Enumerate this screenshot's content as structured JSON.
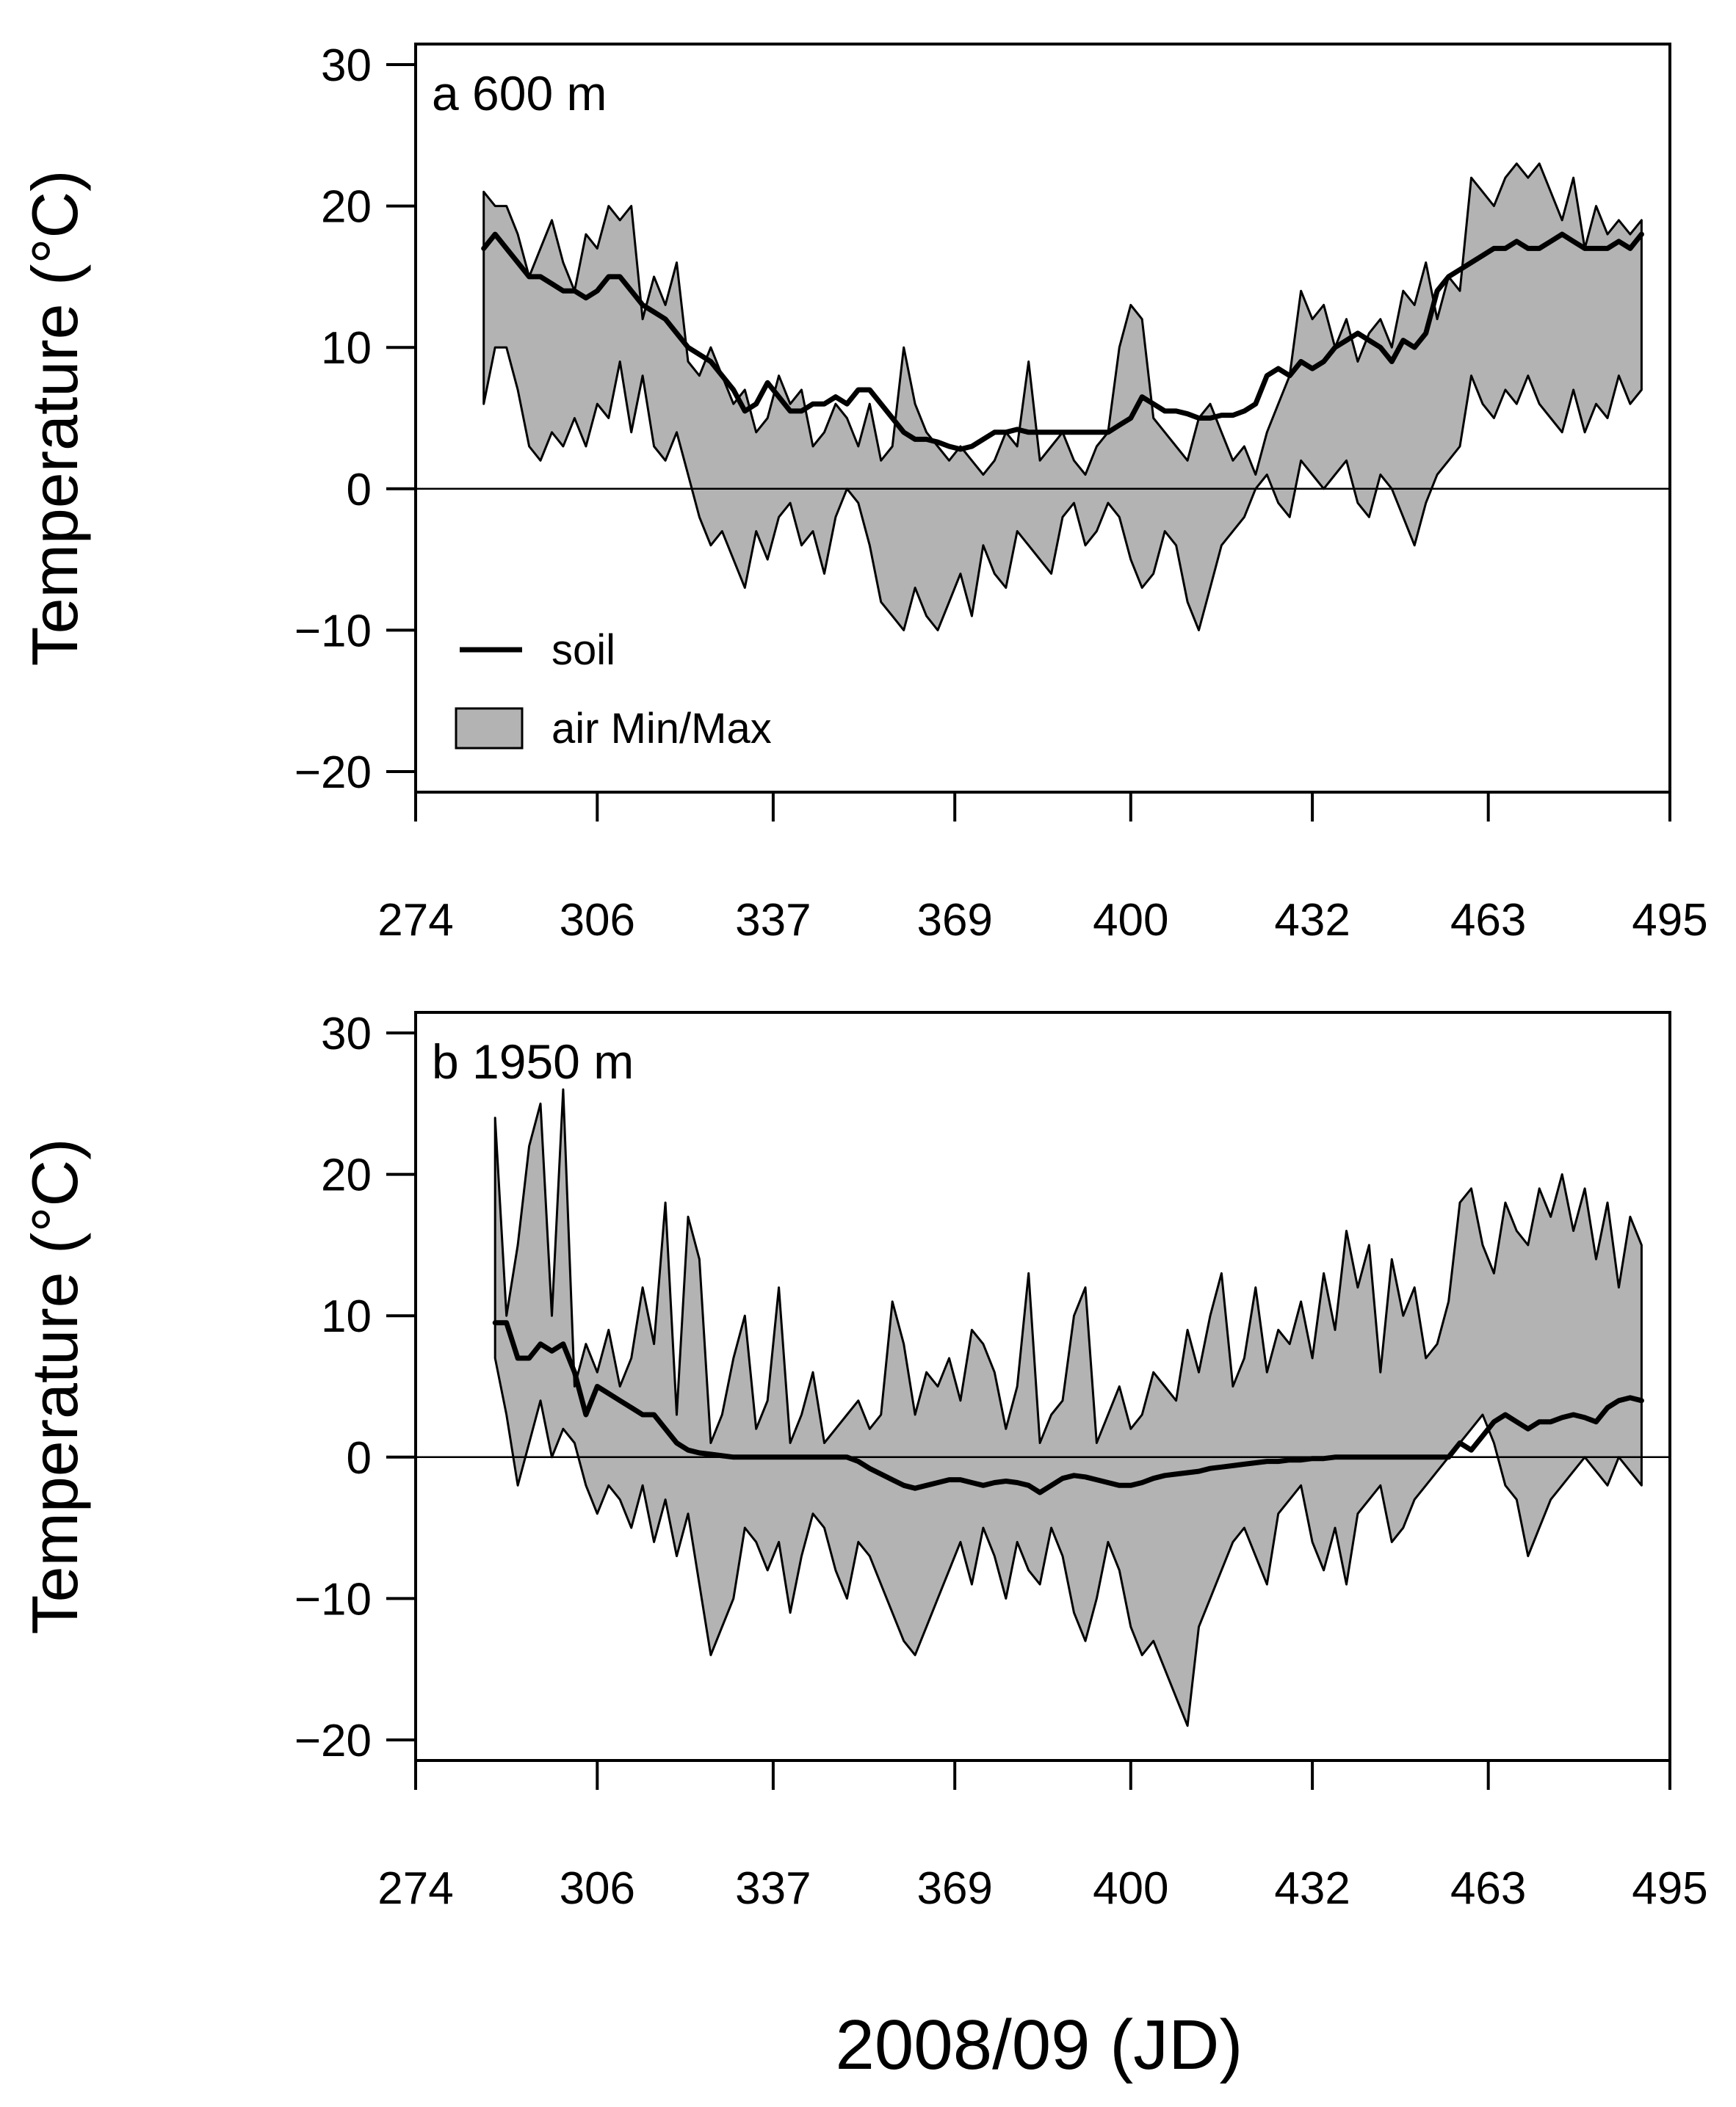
{
  "chart_data": [
    {
      "type": "area",
      "panel_title": "a 600 m",
      "ylabel": "Temperature (°C)",
      "xlim": [
        274,
        495
      ],
      "ylim": [
        -20,
        30
      ],
      "xticks": [
        274,
        306,
        337,
        369,
        400,
        432,
        463,
        495
      ],
      "yticks": [
        30,
        20,
        10,
        0,
        -10,
        -20
      ],
      "ytick_labels": [
        "30",
        "20",
        "10",
        "0",
        "−10",
        "−20"
      ],
      "zero_line": true,
      "legend": {
        "placement": "lower-left",
        "soil_label": "soil",
        "air_label": "air Min/Max"
      },
      "air_x": [
        286,
        288,
        290,
        292,
        294,
        296,
        298,
        300,
        302,
        304,
        306,
        308,
        310,
        312,
        314,
        316,
        318,
        320,
        322,
        324,
        326,
        328,
        330,
        332,
        334,
        336,
        338,
        340,
        342,
        344,
        346,
        348,
        350,
        352,
        354,
        356,
        358,
        360,
        362,
        364,
        366,
        368,
        370,
        372,
        374,
        376,
        378,
        380,
        382,
        384,
        386,
        388,
        390,
        392,
        394,
        396,
        398,
        400,
        402,
        404,
        406,
        408,
        410,
        412,
        414,
        416,
        418,
        420,
        422,
        424,
        426,
        428,
        430,
        432,
        434,
        436,
        438,
        440,
        442,
        444,
        446,
        448,
        450,
        452,
        454,
        456,
        458,
        460,
        462,
        464,
        466,
        468,
        470,
        472,
        474,
        476,
        478,
        480,
        482,
        484,
        486,
        488,
        490
      ],
      "air_max": [
        21,
        20,
        20,
        18,
        15,
        17,
        19,
        16,
        14,
        18,
        17,
        20,
        19,
        20,
        12,
        15,
        13,
        16,
        9,
        8,
        10,
        8,
        6,
        7,
        4,
        5,
        8,
        6,
        7,
        3,
        4,
        6,
        5,
        3,
        6,
        2,
        3,
        10,
        6,
        4,
        3,
        2,
        3,
        2,
        1,
        2,
        4,
        3,
        9,
        2,
        3,
        4,
        2,
        1,
        3,
        4,
        10,
        13,
        12,
        5,
        4,
        3,
        2,
        5,
        6,
        4,
        2,
        3,
        1,
        4,
        6,
        8,
        14,
        12,
        13,
        10,
        12,
        9,
        11,
        12,
        10,
        14,
        13,
        16,
        12,
        15,
        14,
        22,
        21,
        20,
        22,
        23,
        22,
        23,
        21,
        19,
        22,
        17,
        20,
        18,
        19,
        18,
        19
      ],
      "air_min": [
        6,
        10,
        10,
        7,
        3,
        2,
        4,
        3,
        5,
        3,
        6,
        5,
        9,
        4,
        8,
        3,
        2,
        4,
        1,
        -2,
        -4,
        -3,
        -5,
        -7,
        -3,
        -5,
        -2,
        -1,
        -4,
        -3,
        -6,
        -2,
        0,
        -1,
        -4,
        -8,
        -9,
        -10,
        -7,
        -9,
        -10,
        -8,
        -6,
        -9,
        -4,
        -6,
        -7,
        -3,
        -4,
        -5,
        -6,
        -2,
        -1,
        -4,
        -3,
        -1,
        -2,
        -5,
        -7,
        -6,
        -3,
        -4,
        -8,
        -10,
        -7,
        -4,
        -3,
        -2,
        0,
        1,
        -1,
        -2,
        2,
        1,
        0,
        1,
        2,
        -1,
        -2,
        1,
        0,
        -2,
        -4,
        -1,
        1,
        2,
        3,
        8,
        6,
        5,
        7,
        6,
        8,
        6,
        5,
        4,
        7,
        4,
        6,
        5,
        8,
        6,
        7
      ],
      "soil_x": [
        286,
        288,
        290,
        292,
        294,
        296,
        298,
        300,
        302,
        304,
        306,
        308,
        310,
        312,
        314,
        316,
        318,
        320,
        322,
        324,
        326,
        328,
        330,
        332,
        334,
        336,
        338,
        340,
        342,
        344,
        346,
        348,
        350,
        352,
        354,
        356,
        358,
        360,
        362,
        364,
        366,
        368,
        370,
        372,
        374,
        376,
        378,
        380,
        382,
        384,
        386,
        388,
        390,
        392,
        394,
        396,
        398,
        400,
        402,
        404,
        406,
        408,
        410,
        412,
        414,
        416,
        418,
        420,
        422,
        424,
        426,
        428,
        430,
        432,
        434,
        436,
        438,
        440,
        442,
        444,
        446,
        448,
        450,
        452,
        454,
        456,
        458,
        460,
        462,
        464,
        466,
        468,
        470,
        472,
        474,
        476,
        478,
        480,
        482,
        484,
        486,
        488,
        490
      ],
      "soil": [
        17,
        18,
        17,
        16,
        15,
        15,
        14.5,
        14,
        14,
        13.5,
        14,
        15,
        15,
        14,
        13,
        12.5,
        12,
        11,
        10,
        9.5,
        9,
        8,
        7,
        5.5,
        6,
        7.5,
        6.5,
        5.5,
        5.5,
        6,
        6,
        6.5,
        6,
        7,
        7,
        6,
        5,
        4,
        3.5,
        3.5,
        3.3,
        3,
        2.8,
        3,
        3.5,
        4,
        4,
        4.2,
        4,
        4,
        4,
        4,
        4,
        4,
        4,
        4,
        4.5,
        5,
        6.5,
        6,
        5.5,
        5.5,
        5.3,
        5,
        5,
        5.2,
        5.2,
        5.5,
        6,
        8,
        8.5,
        8,
        9,
        8.5,
        9,
        10,
        10.5,
        11,
        10.5,
        10,
        9,
        10.5,
        10,
        11,
        14,
        15,
        15.5,
        16,
        16.5,
        17,
        17,
        17.5,
        17,
        17,
        17.5,
        18,
        17.5,
        17,
        17,
        17,
        17.5,
        17,
        18
      ]
    },
    {
      "type": "area",
      "panel_title": "b 1950 m",
      "ylabel": "Temperature (°C)",
      "xlim": [
        274,
        495
      ],
      "ylim": [
        -20,
        30
      ],
      "xticks": [
        274,
        306,
        337,
        369,
        400,
        432,
        463,
        495
      ],
      "yticks": [
        30,
        20,
        10,
        0,
        -10,
        -20
      ],
      "ytick_labels": [
        "30",
        "20",
        "10",
        "0",
        "−10",
        "−20"
      ],
      "zero_line": true,
      "air_x": [
        288,
        290,
        292,
        294,
        296,
        298,
        300,
        302,
        304,
        306,
        308,
        310,
        312,
        314,
        316,
        318,
        320,
        322,
        324,
        326,
        328,
        330,
        332,
        334,
        336,
        338,
        340,
        342,
        344,
        346,
        348,
        350,
        352,
        354,
        356,
        358,
        360,
        362,
        364,
        366,
        368,
        370,
        372,
        374,
        376,
        378,
        380,
        382,
        384,
        386,
        388,
        390,
        392,
        394,
        396,
        398,
        400,
        402,
        404,
        406,
        408,
        410,
        412,
        414,
        416,
        418,
        420,
        422,
        424,
        426,
        428,
        430,
        432,
        434,
        436,
        438,
        440,
        442,
        444,
        446,
        448,
        450,
        452,
        454,
        456,
        458,
        460,
        462,
        464,
        466,
        468,
        470,
        472,
        474,
        476,
        478,
        480,
        482,
        484,
        486,
        488,
        490
      ],
      "air_max": [
        24,
        10,
        15,
        22,
        25,
        10,
        26,
        5,
        8,
        6,
        9,
        5,
        7,
        12,
        8,
        18,
        3,
        17,
        14,
        1,
        3,
        7,
        10,
        2,
        4,
        12,
        1,
        3,
        6,
        1,
        2,
        3,
        4,
        2,
        3,
        11,
        8,
        3,
        6,
        5,
        7,
        4,
        9,
        8,
        6,
        2,
        5,
        13,
        1,
        3,
        4,
        10,
        12,
        1,
        3,
        5,
        2,
        3,
        6,
        5,
        4,
        9,
        6,
        10,
        13,
        5,
        7,
        12,
        6,
        9,
        8,
        11,
        7,
        13,
        9,
        16,
        12,
        15,
        6,
        14,
        10,
        12,
        7,
        8,
        11,
        18,
        19,
        15,
        13,
        18,
        16,
        15,
        19,
        17,
        20,
        16,
        19,
        14,
        18,
        12,
        17,
        15
      ],
      "air_min": [
        7,
        3,
        -2,
        1,
        4,
        0,
        2,
        1,
        -2,
        -4,
        -2,
        -3,
        -5,
        -2,
        -6,
        -3,
        -7,
        -4,
        -9,
        -14,
        -12,
        -10,
        -5,
        -6,
        -8,
        -6,
        -11,
        -7,
        -4,
        -5,
        -8,
        -10,
        -6,
        -7,
        -9,
        -11,
        -13,
        -14,
        -12,
        -10,
        -8,
        -6,
        -9,
        -5,
        -7,
        -10,
        -6,
        -8,
        -9,
        -5,
        -7,
        -11,
        -13,
        -10,
        -6,
        -8,
        -12,
        -14,
        -13,
        -15,
        -17,
        -19,
        -12,
        -10,
        -8,
        -6,
        -5,
        -7,
        -9,
        -4,
        -3,
        -2,
        -6,
        -8,
        -5,
        -9,
        -4,
        -3,
        -2,
        -6,
        -5,
        -3,
        -2,
        -1,
        0,
        1,
        2,
        3,
        1,
        -2,
        -3,
        -7,
        -5,
        -3,
        -2,
        -1,
        0,
        -1,
        -2,
        0,
        -1,
        -2
      ],
      "soil_x": [
        288,
        290,
        292,
        294,
        296,
        298,
        300,
        302,
        304,
        306,
        308,
        310,
        312,
        314,
        316,
        318,
        320,
        322,
        324,
        326,
        328,
        330,
        332,
        334,
        336,
        338,
        340,
        342,
        344,
        346,
        348,
        350,
        352,
        354,
        356,
        358,
        360,
        362,
        364,
        366,
        368,
        370,
        372,
        374,
        376,
        378,
        380,
        382,
        384,
        386,
        388,
        390,
        392,
        394,
        396,
        398,
        400,
        402,
        404,
        406,
        408,
        410,
        412,
        414,
        416,
        418,
        420,
        422,
        424,
        426,
        428,
        430,
        432,
        434,
        436,
        438,
        440,
        442,
        444,
        446,
        448,
        450,
        452,
        454,
        456,
        458,
        460,
        462,
        464,
        466,
        468,
        470,
        472,
        474,
        476,
        478,
        480,
        482,
        484,
        486,
        488,
        490
      ],
      "soil": [
        9.5,
        9.5,
        7,
        7,
        8,
        7.5,
        8,
        6,
        3,
        5,
        4.5,
        4,
        3.5,
        3,
        3,
        2,
        1,
        0.5,
        0.3,
        0.2,
        0.1,
        0,
        0,
        0,
        0,
        0,
        0,
        0,
        0,
        0,
        0,
        0,
        -0.3,
        -0.8,
        -1.2,
        -1.6,
        -2,
        -2.2,
        -2,
        -1.8,
        -1.6,
        -1.6,
        -1.8,
        -2,
        -1.8,
        -1.7,
        -1.8,
        -2,
        -2.5,
        -2,
        -1.5,
        -1.3,
        -1.4,
        -1.6,
        -1.8,
        -2,
        -2,
        -1.8,
        -1.5,
        -1.3,
        -1.2,
        -1.1,
        -1,
        -0.8,
        -0.7,
        -0.6,
        -0.5,
        -0.4,
        -0.3,
        -0.3,
        -0.2,
        -0.2,
        -0.1,
        -0.1,
        0,
        0,
        0,
        0,
        0,
        0,
        0,
        0,
        0,
        0,
        0,
        1,
        0.5,
        1.5,
        2.5,
        3,
        2.5,
        2,
        2.5,
        2.5,
        2.8,
        3,
        2.8,
        2.5,
        3.5,
        4,
        4.2,
        4
      ]
    }
  ],
  "xlabel": "2008/09 (JD)",
  "colors": {
    "fill": "#b3b3b3",
    "line": "#000000"
  }
}
